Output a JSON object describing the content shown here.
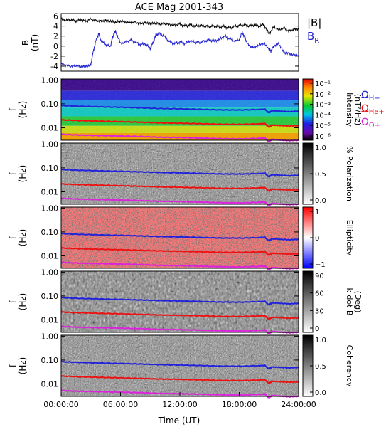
{
  "chart_data": [
    {
      "type": "line",
      "title": "ACE Mag 2001-343",
      "ylabel": "B",
      "yunit": "(nT)",
      "ylim": [
        -5,
        6.5
      ],
      "yticks": [
        "6",
        "4",
        "2",
        "0",
        "-2",
        "-4"
      ],
      "yticks_values": [
        6,
        4,
        2,
        0,
        -2,
        -4
      ],
      "xlim": [
        0,
        24
      ],
      "series": [
        {
          "name": "|B|",
          "color": "#000000",
          "x": [
            0,
            0.5,
            1,
            1.5,
            2,
            2.5,
            3,
            3.5,
            4,
            4.5,
            5,
            5.5,
            6,
            6.5,
            7,
            7.5,
            8,
            8.5,
            9,
            9.5,
            10,
            10.5,
            11,
            11.5,
            12,
            12.5,
            13,
            13.5,
            14,
            14.5,
            15,
            15.5,
            16,
            16.5,
            17,
            17.5,
            18,
            18.5,
            19,
            19.5,
            20,
            20.5,
            21,
            21.5,
            22,
            22.5,
            23,
            23.5,
            24
          ],
          "values": [
            5.4,
            5.2,
            5.3,
            5.0,
            5.3,
            5.0,
            5.4,
            5.1,
            5.0,
            5.1,
            5.0,
            4.8,
            5.0,
            4.8,
            4.7,
            4.8,
            4.5,
            4.7,
            4.5,
            4.6,
            4.4,
            4.5,
            4.3,
            4.2,
            4.4,
            4.0,
            4.2,
            4.0,
            4.1,
            4.0,
            3.9,
            4.0,
            3.8,
            3.9,
            3.6,
            3.9,
            4.1,
            4.2,
            4.0,
            4.2,
            4.0,
            4.3,
            2.4,
            3.9,
            3.2,
            3.6,
            3.0,
            3.3,
            3.4
          ]
        },
        {
          "name": "B",
          "subscript": "R",
          "color": "#1f1fcf",
          "x": [
            0,
            0.5,
            1,
            1.5,
            2,
            2.5,
            3,
            3.2,
            3.5,
            3.8,
            4,
            4.5,
            5,
            5.2,
            5.5,
            6,
            6.5,
            7,
            7.5,
            8,
            8.5,
            9,
            9.3,
            9.6,
            10,
            10.5,
            11,
            11.5,
            12,
            12.5,
            13,
            13.5,
            14,
            14.5,
            15,
            15.5,
            16,
            16.5,
            17,
            17.5,
            18,
            18.3,
            18.6,
            19,
            19.5,
            20,
            20.5,
            21,
            21.2,
            21.5,
            22,
            22.5,
            23,
            23.5,
            24
          ],
          "values": [
            -3.5,
            -3.8,
            -4.0,
            -3.9,
            -4.1,
            -4.0,
            -3.8,
            -1.5,
            1.0,
            2.5,
            1.2,
            0.3,
            0.0,
            1.8,
            3.0,
            0.5,
            0.8,
            1.2,
            0.8,
            0.3,
            0.5,
            -0.5,
            0.8,
            2.3,
            2.5,
            1.8,
            0.8,
            0.5,
            0.8,
            0.5,
            1.0,
            0.8,
            0.7,
            1.0,
            1.2,
            1.0,
            1.3,
            2.0,
            1.5,
            1.0,
            1.2,
            2.8,
            1.5,
            0.0,
            -0.3,
            0.2,
            0.5,
            -0.5,
            -1.0,
            0.0,
            0.5,
            -1.3,
            -1.5,
            -1.8,
            -1.8
          ]
        }
      ]
    },
    {
      "type": "heatmap",
      "ylabel": "f",
      "yunit": "(Hz)",
      "yticks": [
        "1.00",
        "0.10",
        "0.01"
      ],
      "yticks_values": [
        1,
        0.1,
        0.01
      ],
      "ylim": [
        0.003,
        1.1
      ],
      "yscale": "log",
      "colorbar_label": "Intensity",
      "colorbar_unit": "(nT²/Hz)",
      "colorbar_ticks": [
        "10⁻¹",
        "10⁻²",
        "10⁻³",
        "10⁻⁴",
        "10⁻⁵",
        "10⁻⁶"
      ],
      "colorbar": "rainbow",
      "legend": [
        {
          "symbol": "Ω",
          "sub": "H+",
          "color": "#2222dd"
        },
        {
          "symbol": "Ω",
          "sub": "He+",
          "color": "#ee1111"
        },
        {
          "symbol": "Ω",
          "sub": "O+",
          "color": "#dd22dd"
        }
      ]
    },
    {
      "type": "heatmap",
      "ylabel": "f",
      "yunit": "(Hz)",
      "yticks": [
        "1.00",
        "0.10",
        "0.01"
      ],
      "yticks_values": [
        1,
        0.1,
        0.01
      ],
      "yscale": "log",
      "colorbar_label": "% Polarization",
      "colorbar_ticks": [
        "1.0",
        "0.5",
        "0.0"
      ],
      "colorbar": "gray"
    },
    {
      "type": "heatmap",
      "ylabel": "f",
      "yunit": "(Hz)",
      "yticks": [
        "1.00",
        "0.10",
        "0.01"
      ],
      "yticks_values": [
        1,
        0.1,
        0.01
      ],
      "yscale": "log",
      "colorbar_label": "Ellipticity",
      "colorbar_ticks": [
        "1",
        "0",
        "−1"
      ],
      "colorbar": "bwr"
    },
    {
      "type": "heatmap",
      "ylabel": "f",
      "yunit": "(Hz)",
      "yticks": [
        "1.00",
        "0.10",
        "0.01"
      ],
      "yticks_values": [
        1,
        0.1,
        0.01
      ],
      "yscale": "log",
      "colorbar_label": "k dot B",
      "colorbar_unit": "(Deg)",
      "colorbar_ticks": [
        "90",
        "60",
        "30",
        "0"
      ],
      "colorbar": "gray"
    },
    {
      "type": "heatmap",
      "ylabel": "f",
      "yunit": "(Hz)",
      "yticks": [
        "1.00",
        "0.10",
        "0.01"
      ],
      "yticks_values": [
        1,
        0.1,
        0.01
      ],
      "yscale": "log",
      "colorbar_label": "Coherency",
      "colorbar_ticks": [
        "1.0",
        "0.5",
        "0.0"
      ],
      "colorbar": "gray"
    }
  ],
  "gyro": {
    "x": [
      0,
      2,
      4,
      6,
      8,
      10,
      12,
      14,
      16,
      18,
      20,
      20.6,
      21,
      21.3,
      22,
      23,
      24
    ],
    "H": [
      0.085,
      0.079,
      0.075,
      0.072,
      0.068,
      0.064,
      0.062,
      0.059,
      0.056,
      0.055,
      0.058,
      0.059,
      0.042,
      0.052,
      0.05,
      0.047,
      0.049
    ],
    "He": [
      0.0213,
      0.0198,
      0.0188,
      0.018,
      0.017,
      0.016,
      0.0155,
      0.0148,
      0.014,
      0.0138,
      0.0145,
      0.0148,
      0.0105,
      0.013,
      0.0125,
      0.0118,
      0.0122
    ],
    "O": [
      0.0053,
      0.0049,
      0.0047,
      0.0045,
      0.0043,
      0.004,
      0.0039,
      0.0037,
      0.0035,
      0.0034,
      0.0036,
      0.0037,
      0.0026,
      0.0033,
      0.0031,
      0.0029,
      0.003
    ]
  },
  "xaxis": {
    "label": "Time (UT)",
    "ticks": [
      "00:00:00",
      "06:00:00",
      "12:00:00",
      "18:00:00",
      "24:00:00"
    ],
    "ticks_values": [
      0,
      6,
      12,
      18,
      24
    ]
  }
}
